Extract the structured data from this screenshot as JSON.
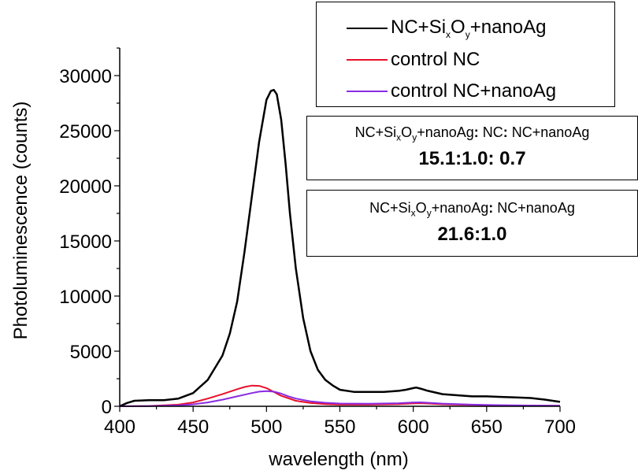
{
  "chart_data": {
    "type": "line",
    "xlabel": "wavelength (nm)",
    "ylabel": "Photoluminescence (counts)",
    "xlim": [
      400,
      700
    ],
    "ylim": [
      0,
      32500
    ],
    "x_ticks": [
      400,
      450,
      500,
      550,
      600,
      650,
      700
    ],
    "y_ticks": [
      0,
      5000,
      10000,
      15000,
      20000,
      25000,
      30000
    ],
    "legend_position": "top-right",
    "grid": false,
    "series": [
      {
        "name": "NC+SixOy+nanoAg",
        "color": "#000000",
        "x": [
          400,
          405,
          410,
          420,
          430,
          440,
          450,
          460,
          470,
          475,
          480,
          485,
          490,
          495,
          500,
          503,
          505,
          507,
          510,
          513,
          516,
          520,
          525,
          530,
          535,
          540,
          545,
          550,
          560,
          570,
          580,
          590,
          595,
          600,
          602,
          605,
          610,
          620,
          630,
          640,
          650,
          660,
          670,
          680,
          690,
          700
        ],
        "y": [
          0,
          300,
          500,
          550,
          550,
          700,
          1200,
          2400,
          4600,
          6600,
          9500,
          14000,
          19000,
          24000,
          27800,
          28600,
          28700,
          28300,
          26000,
          22000,
          17500,
          12500,
          8000,
          5000,
          3300,
          2400,
          1900,
          1500,
          1300,
          1300,
          1300,
          1400,
          1500,
          1650,
          1700,
          1600,
          1400,
          1100,
          1000,
          900,
          900,
          850,
          800,
          750,
          600,
          400
        ]
      },
      {
        "name": "control NC",
        "color": "#e8102a",
        "x": [
          400,
          420,
          440,
          450,
          460,
          470,
          480,
          485,
          490,
          495,
          500,
          505,
          510,
          520,
          530,
          540,
          550,
          570,
          590,
          600,
          605,
          610,
          620,
          640,
          660,
          680,
          700
        ],
        "y": [
          0,
          30,
          150,
          350,
          700,
          1100,
          1550,
          1750,
          1880,
          1850,
          1650,
          1300,
          950,
          500,
          300,
          200,
          150,
          150,
          200,
          260,
          280,
          250,
          180,
          120,
          80,
          60,
          50
        ]
      },
      {
        "name": "control NC+nanoAg",
        "color": "#8a2be2",
        "x": [
          400,
          420,
          440,
          450,
          460,
          470,
          480,
          490,
          495,
          500,
          505,
          510,
          515,
          520,
          530,
          540,
          550,
          570,
          590,
          600,
          605,
          610,
          620,
          640,
          660,
          680,
          700
        ],
        "y": [
          0,
          20,
          80,
          180,
          350,
          600,
          900,
          1200,
          1330,
          1370,
          1330,
          1150,
          900,
          700,
          450,
          320,
          250,
          230,
          280,
          350,
          360,
          320,
          240,
          150,
          100,
          70,
          60
        ]
      }
    ]
  },
  "legend": {
    "items": [
      {
        "pre": "NC+Si",
        "s1": "x",
        "mid": "O",
        "s2": "y",
        "post": "+nanoAg",
        "color": "#000000"
      },
      {
        "pre": "control NC",
        "color": "#e8102a"
      },
      {
        "pre": "control NC+nanoAg",
        "color": "#8a2be2"
      }
    ]
  },
  "note1": {
    "a": "NC+Si",
    "s1": "x",
    "b": "O",
    "s2": "y",
    "c": "+nanoAg",
    "colon1": ":",
    "d": " NC",
    "colon2": ":",
    "e": " NC+nanoAg",
    "ratio": "15.1:1.0: 0.7"
  },
  "note2": {
    "a": "NC+Si",
    "s1": "x",
    "b": "O",
    "s2": "y",
    "c": "+nanoAg",
    "colon1": ":",
    "d": " NC+nanoAg",
    "ratio": "21.6:1.0"
  }
}
